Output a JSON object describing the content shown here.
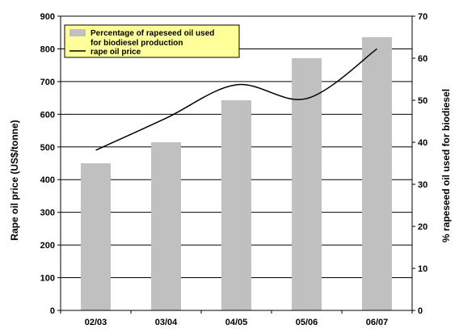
{
  "chart_data": {
    "type": "bar",
    "categories": [
      "02/03",
      "03/04",
      "04/05",
      "05/06",
      "06/07"
    ],
    "series": [
      {
        "name": "Percentage of rapeseed oil used for biodiesel production",
        "type": "bar",
        "axis": "right",
        "color": "#c0c0c0",
        "values": [
          35,
          40,
          50,
          60,
          65
        ]
      },
      {
        "name": "rape oil price",
        "type": "line",
        "axis": "left",
        "color": "#000000",
        "smooth": true,
        "values": [
          490,
          588,
          690,
          648,
          800
        ]
      }
    ],
    "ylabel": "Rape oil price (US$/tonne)",
    "ylabel_right": "% rapeseed oil used for biodiesel",
    "ylim": [
      0,
      900
    ],
    "ylim_right": [
      0,
      70
    ],
    "yticks": [
      0,
      100,
      200,
      300,
      400,
      500,
      600,
      700,
      800,
      900
    ],
    "yticks_right": [
      0,
      10,
      20,
      30,
      40,
      50,
      60,
      70
    ],
    "grid": true,
    "legend_position": "top-left",
    "legend_background": "#ffff99",
    "legend_entries": [
      {
        "line1": "Percentage of rapeseed oil used",
        "line2": "for biodiesel production",
        "swatch": "bar"
      },
      {
        "line1": "rape oil price",
        "line2": "",
        "swatch": "line"
      }
    ]
  }
}
